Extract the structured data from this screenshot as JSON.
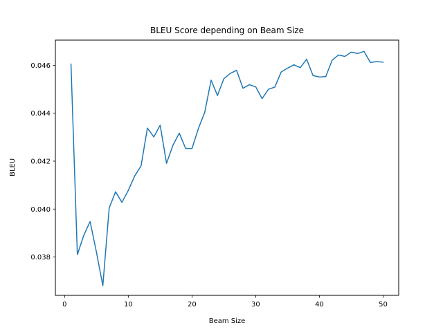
{
  "chart_data": {
    "type": "line",
    "title": "BLEU Score depending on Beam Size",
    "xlabel": "Beam Size",
    "ylabel": "BLEU",
    "xlim": [
      -1.45,
      52.45
    ],
    "ylim": [
      0.0364,
      0.04705
    ],
    "xticks": [
      0,
      10,
      20,
      30,
      40,
      50
    ],
    "xtick_labels": [
      "0",
      "10",
      "20",
      "30",
      "40",
      "50"
    ],
    "yticks": [
      0.038,
      0.04,
      0.042,
      0.044,
      0.046
    ],
    "ytick_labels": [
      "0.038",
      "0.040",
      "0.042",
      "0.044",
      "0.046"
    ],
    "grid": false,
    "legend": "none",
    "series": [
      {
        "color": "#1f77b4",
        "x": [
          1,
          2,
          3,
          4,
          5,
          6,
          7,
          8,
          9,
          10,
          11,
          12,
          13,
          14,
          15,
          16,
          17,
          18,
          19,
          20,
          21,
          22,
          23,
          24,
          25,
          26,
          27,
          28,
          29,
          30,
          31,
          32,
          33,
          34,
          35,
          36,
          37,
          38,
          39,
          40,
          41,
          42,
          43,
          44,
          45,
          46,
          47,
          48,
          49,
          50
        ],
        "values": [
          0.04605,
          0.0381,
          0.0389,
          0.03948,
          0.0382,
          0.0368,
          0.04005,
          0.04072,
          0.04028,
          0.04078,
          0.04138,
          0.0418,
          0.04338,
          0.04301,
          0.0435,
          0.04191,
          0.04266,
          0.04317,
          0.04253,
          0.04253,
          0.04336,
          0.04404,
          0.04538,
          0.04474,
          0.04544,
          0.04566,
          0.04579,
          0.04504,
          0.04519,
          0.0451,
          0.04461,
          0.045,
          0.04509,
          0.04572,
          0.04588,
          0.04602,
          0.0459,
          0.04625,
          0.04557,
          0.04551,
          0.04553,
          0.04621,
          0.04643,
          0.04637,
          0.04655,
          0.04649,
          0.04658,
          0.04612,
          0.04615,
          0.04613
        ]
      }
    ]
  }
}
